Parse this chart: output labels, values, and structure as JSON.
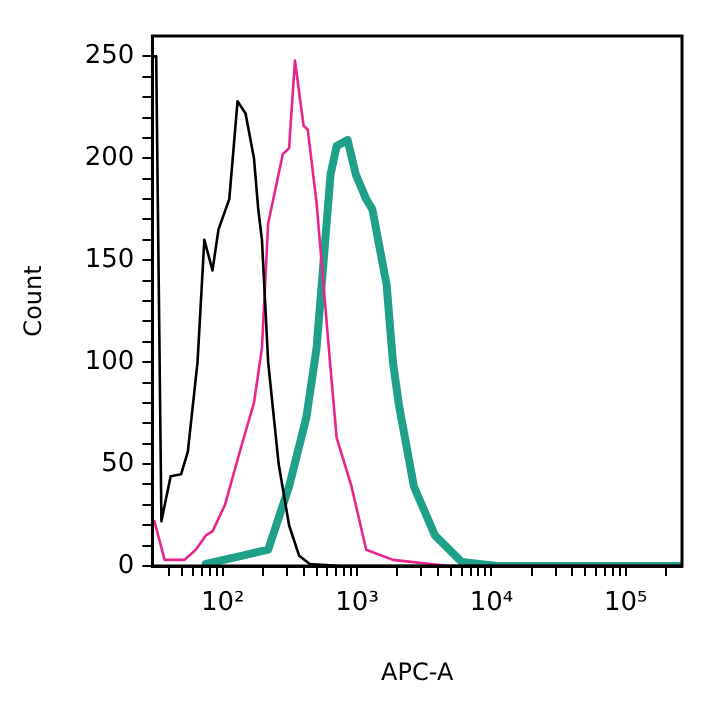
{
  "chart_data": {
    "type": "line",
    "xlabel": "APC-A",
    "ylabel": "Count",
    "log": "x",
    "grid": false,
    "legend": false,
    "marker": "none",
    "line_style": "solid",
    "xlim": [
      30,
      262144
    ],
    "ylim": [
      0,
      260
    ],
    "xticks": [
      {
        "value": 40,
        "label": null
      },
      {
        "value": 50,
        "label": null
      },
      {
        "value": 60,
        "label": null
      },
      {
        "value": 70,
        "label": null
      },
      {
        "value": 80,
        "label": null
      },
      {
        "value": 90,
        "label": null
      },
      {
        "value": 100,
        "label": "10²"
      },
      {
        "value": 200,
        "label": null
      },
      {
        "value": 300,
        "label": null
      },
      {
        "value": 400,
        "label": null
      },
      {
        "value": 500,
        "label": null
      },
      {
        "value": 600,
        "label": null
      },
      {
        "value": 700,
        "label": null
      },
      {
        "value": 800,
        "label": null
      },
      {
        "value": 900,
        "label": null
      },
      {
        "value": 1000,
        "label": "10³"
      },
      {
        "value": 2000,
        "label": null
      },
      {
        "value": 3000,
        "label": null
      },
      {
        "value": 4000,
        "label": null
      },
      {
        "value": 5000,
        "label": null
      },
      {
        "value": 6000,
        "label": null
      },
      {
        "value": 7000,
        "label": null
      },
      {
        "value": 8000,
        "label": null
      },
      {
        "value": 9000,
        "label": null
      },
      {
        "value": 10000,
        "label": "10⁴"
      },
      {
        "value": 20000,
        "label": null
      },
      {
        "value": 30000,
        "label": null
      },
      {
        "value": 40000,
        "label": null
      },
      {
        "value": 50000,
        "label": null
      },
      {
        "value": 60000,
        "label": null
      },
      {
        "value": 70000,
        "label": null
      },
      {
        "value": 80000,
        "label": null
      },
      {
        "value": 90000,
        "label": null
      },
      {
        "value": 100000,
        "label": "10⁵"
      },
      {
        "value": 200000,
        "label": null
      }
    ],
    "yticks": [
      0,
      {
        "value": 10,
        "label": null
      },
      {
        "value": 20,
        "label": null
      },
      {
        "value": 30,
        "label": null
      },
      {
        "value": 40,
        "label": null
      },
      50,
      {
        "value": 60,
        "label": null
      },
      {
        "value": 70,
        "label": null
      },
      {
        "value": 80,
        "label": null
      },
      {
        "value": 90,
        "label": null
      },
      100,
      {
        "value": 110,
        "label": null
      },
      {
        "value": 120,
        "label": null
      },
      {
        "value": 130,
        "label": null
      },
      {
        "value": 140,
        "label": null
      },
      150,
      {
        "value": 160,
        "label": null
      },
      {
        "value": 170,
        "label": null
      },
      {
        "value": 180,
        "label": null
      },
      {
        "value": 190,
        "label": null
      },
      200,
      {
        "value": 210,
        "label": null
      },
      {
        "value": 220,
        "label": null
      },
      {
        "value": 230,
        "label": null
      },
      {
        "value": 240,
        "label": null
      },
      250
    ],
    "series": [
      {
        "color": "#000000",
        "x": [
          31,
          32,
          35,
          41,
          49,
          55,
          65,
          73,
          84,
          93,
          112,
          129,
          148,
          171,
          184,
          196,
          218,
          261,
          312,
          371,
          445,
          760,
          262144
        ],
        "values": [
          250,
          250,
          22,
          44,
          45,
          56,
          100,
          160,
          145,
          165,
          180,
          228,
          222,
          200,
          175,
          160,
          100,
          50,
          20,
          5,
          1,
          0,
          0
        ]
      },
      {
        "color": "#e8258f",
        "x": [
          31,
          37,
          52,
          63,
          75,
          84,
          104,
          138,
          171,
          196,
          218,
          280,
          312,
          345,
          400,
          430,
          500,
          635,
          705,
          910,
          1170,
          1850,
          4800,
          262144
        ],
        "values": [
          22,
          3,
          3,
          8,
          15,
          17,
          30,
          59,
          80,
          107,
          168,
          202,
          205,
          248,
          216,
          214,
          178,
          97,
          63,
          39,
          8,
          3,
          0,
          0
        ]
      },
      {
        "color": "#1fa088",
        "x": [
          75,
          138,
          218,
          312,
          420,
          500,
          635,
          705,
          850,
          980,
          1170,
          1300,
          1660,
          1850,
          2050,
          2650,
          3800,
          6000,
          11000,
          262144
        ],
        "values": [
          1,
          5,
          8,
          39,
          73,
          107,
          192,
          206,
          209,
          192,
          180,
          175,
          138,
          100,
          79,
          39,
          15,
          2,
          0,
          0
        ]
      }
    ]
  }
}
